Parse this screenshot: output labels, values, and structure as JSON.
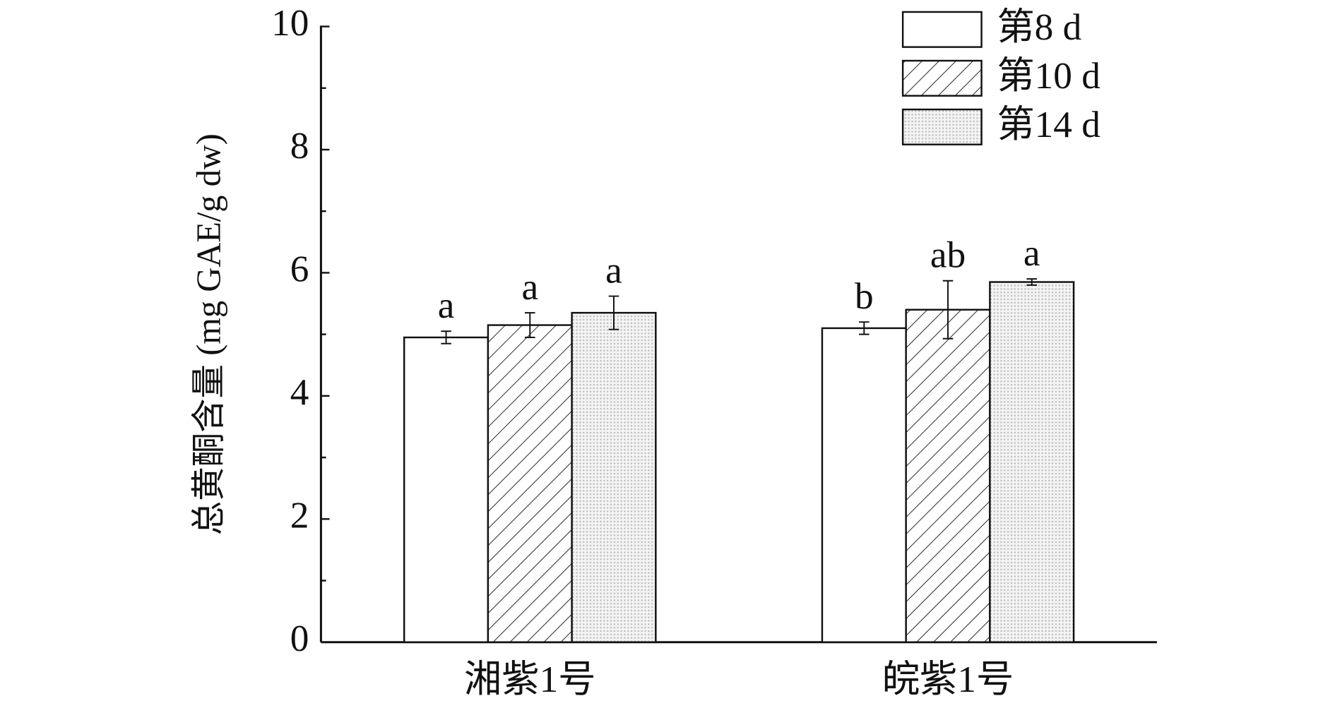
{
  "chart_data": {
    "type": "bar",
    "ylabel": "总黄酮含量 (mg GAE/g dw)",
    "categories": [
      "湘紫1号",
      "皖紫1号"
    ],
    "series": [
      {
        "name": "第8 d",
        "color": "#ffffff",
        "pattern": "none",
        "values": [
          4.95,
          5.1
        ],
        "errors": [
          0.1,
          0.1
        ],
        "letters": [
          "a",
          "b"
        ]
      },
      {
        "name": "第10 d",
        "color": "#ffffff",
        "pattern": "hatch",
        "values": [
          5.15,
          5.4
        ],
        "errors": [
          0.2,
          0.47
        ],
        "letters": [
          "a",
          "ab"
        ]
      },
      {
        "name": "第14 d",
        "color": "#e4e4e4",
        "pattern": "dots",
        "values": [
          5.35,
          5.85
        ],
        "errors": [
          0.27,
          0.05
        ],
        "letters": [
          "a",
          "a"
        ]
      }
    ],
    "ylim": [
      0,
      10
    ],
    "yticks": [
      0,
      2,
      4,
      6,
      8,
      10
    ],
    "yminorticks": [
      1,
      3,
      5,
      7,
      9
    ],
    "legend": "upper right"
  }
}
